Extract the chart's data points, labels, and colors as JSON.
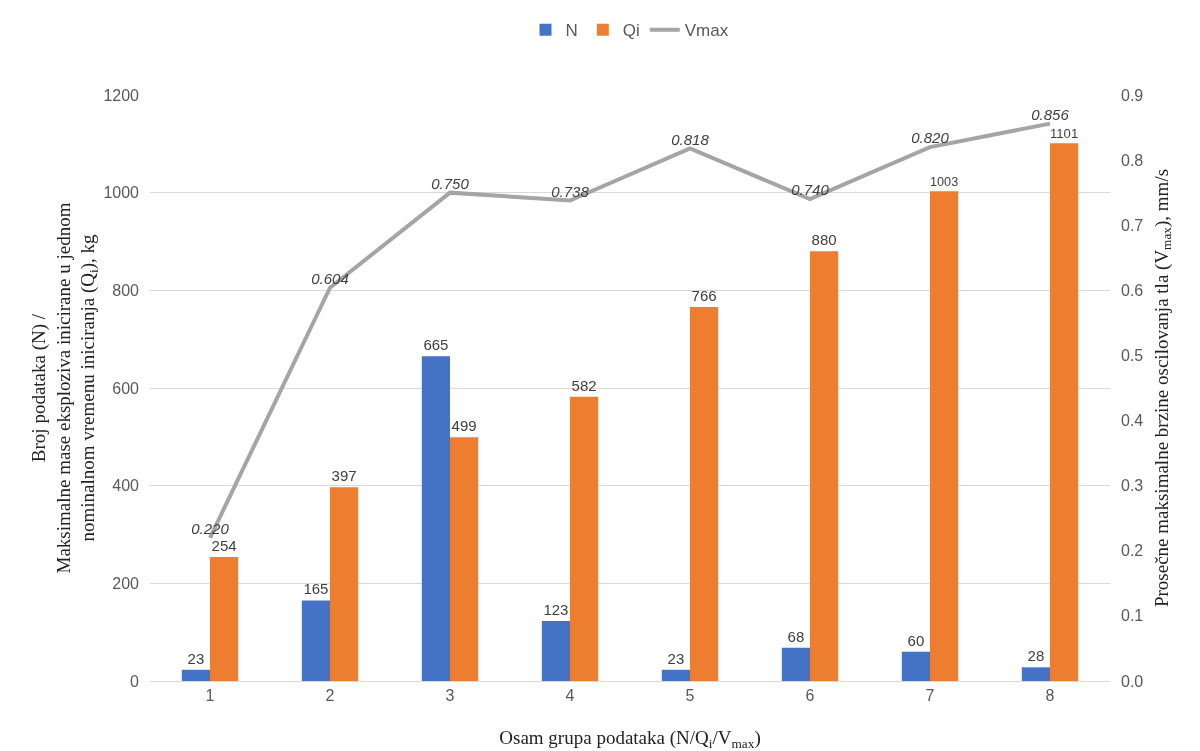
{
  "chart_data": {
    "type": "bar",
    "categories": [
      "1",
      "2",
      "3",
      "4",
      "5",
      "6",
      "7",
      "8"
    ],
    "xlabel": "Osam grupa podataka (N/Q$_{i}$/V$_{max}$)",
    "ylabel": "Broj podataka (N) /\nMaksimalne mase eksploziva inicirane u jednom\nnominalnom vremenu iniciranja (Q$_{i}$), kg",
    "y2label": "Prosečne maksimalne brzine oscilovanja tla (V$_{max}$), mm/s",
    "series": [
      {
        "name": "N",
        "color": "#4472c4",
        "values": [
          23,
          165,
          665,
          123,
          23,
          68,
          60,
          28
        ]
      },
      {
        "name": "Qi",
        "color": "#ed7d31",
        "values": [
          254,
          397,
          499,
          582,
          766,
          880,
          1003,
          1101
        ]
      },
      {
        "name": "Vmax",
        "type": "line",
        "axis": "y2",
        "color": "#a5a5a5",
        "marker": "none",
        "line_style": "solid",
        "values": [
          0.22,
          0.604,
          0.75,
          0.738,
          0.818,
          0.74,
          0.82,
          0.856
        ],
        "value_labels": [
          "0.220",
          "0.604",
          "0.750",
          "0.738",
          "0.818",
          "0.740",
          "0.820",
          "0.856"
        ]
      }
    ],
    "data_labels": true,
    "ylim": [
      0,
      1200
    ],
    "yticks": [
      0,
      200,
      400,
      600,
      800,
      1000,
      1200
    ],
    "y2lim": [
      0,
      0.9
    ],
    "y2ticks": [
      {
        "value": 0,
        "label": "0.0"
      },
      0.1,
      0.2,
      0.3,
      0.4,
      0.5,
      0.6,
      0.7,
      0.8,
      0.9
    ],
    "grid": "y",
    "legend": "top"
  }
}
